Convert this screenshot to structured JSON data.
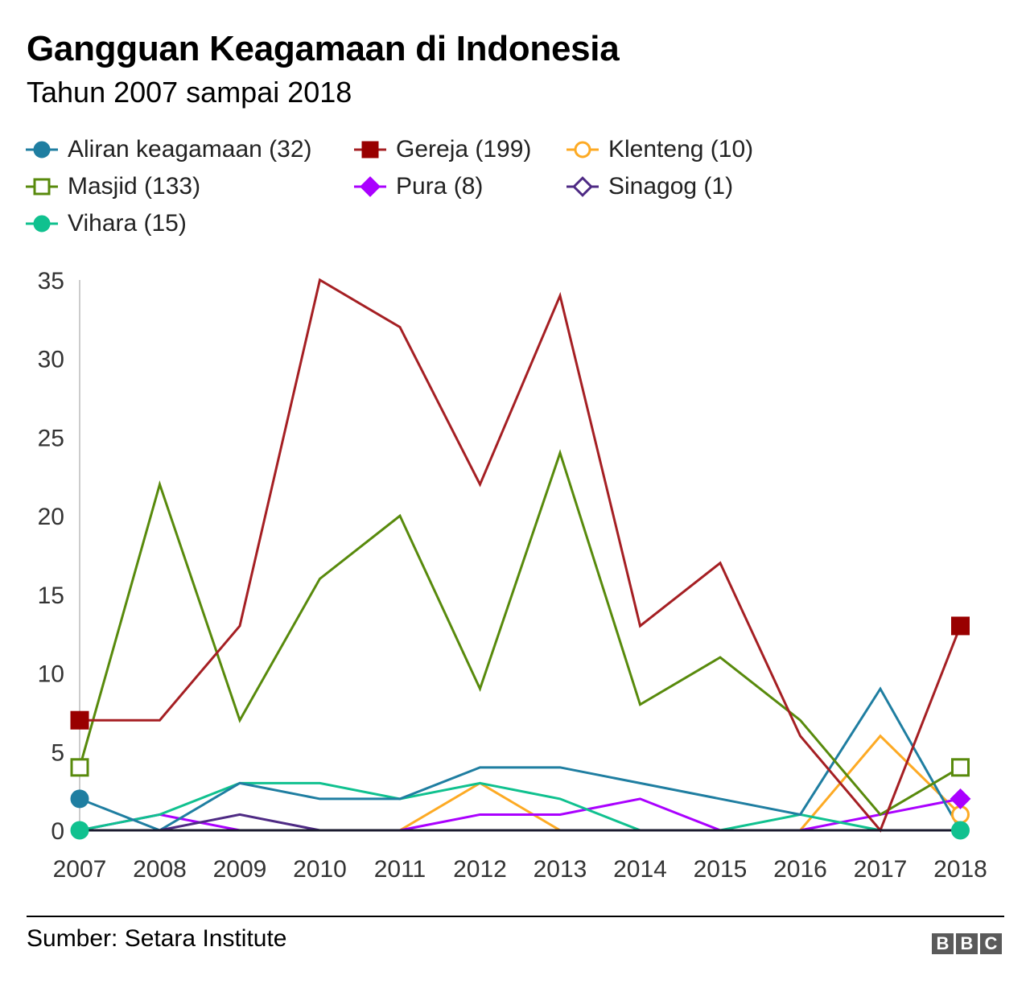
{
  "header": {
    "title": "Gangguan Keagamaan di Indonesia",
    "subtitle": "Tahun 2007 sampai 2018"
  },
  "footer": {
    "source": "Sumber: Setara Institute",
    "logo": [
      "B",
      "B",
      "C"
    ]
  },
  "chart_data": {
    "type": "line",
    "title": "Gangguan Keagamaan di Indonesia",
    "subtitle": "Tahun 2007 sampai 2018",
    "xlabel": "",
    "ylabel": "",
    "ylim": [
      0,
      35
    ],
    "yticks": [
      0,
      5,
      10,
      15,
      20,
      25,
      30,
      35
    ],
    "grid": false,
    "legend_position": "top",
    "x": [
      "2007",
      "2008",
      "2009",
      "2010",
      "2011",
      "2012",
      "2013",
      "2014",
      "2015",
      "2016",
      "2017",
      "2018"
    ],
    "series": [
      {
        "name": "Aliran keagamaan",
        "legend_label": "Aliran keagamaan (32)",
        "total": 32,
        "color": "#1f7ea1",
        "marker": "circle-filled",
        "values": [
          2,
          0,
          3,
          2,
          2,
          4,
          4,
          3,
          2,
          1,
          9,
          0
        ]
      },
      {
        "name": "Gereja",
        "legend_label": "Gereja (199)",
        "total": 199,
        "color": "#a51f23",
        "marker_color": "#990000",
        "marker": "square-filled",
        "values": [
          7,
          7,
          13,
          35,
          32,
          22,
          34,
          13,
          17,
          6,
          0,
          13
        ]
      },
      {
        "name": "Klenteng",
        "legend_label": "Klenteng (10)",
        "total": 10,
        "color": "#fdaa24",
        "marker": "circle-open",
        "values": [
          0,
          0,
          0,
          0,
          0,
          3,
          0,
          0,
          0,
          0,
          6,
          1
        ]
      },
      {
        "name": "Masjid",
        "legend_label": "Masjid (133)",
        "total": 133,
        "color": "#588a0c",
        "marker": "square-open",
        "values": [
          4,
          22,
          7,
          16,
          20,
          9,
          24,
          8,
          11,
          7,
          1,
          4
        ]
      },
      {
        "name": "Pura",
        "legend_label": "Pura (8)",
        "total": 8,
        "color": "#aa00ff",
        "marker": "diamond-filled",
        "values": [
          0,
          1,
          0,
          0,
          0,
          1,
          1,
          2,
          0,
          0,
          1,
          2
        ]
      },
      {
        "name": "Sinagog",
        "legend_label": "Sinagog (1)",
        "total": 1,
        "color": "#4e2a84",
        "marker": "diamond-open",
        "values": [
          0,
          0,
          1,
          0,
          0,
          0,
          0,
          0,
          0,
          0,
          0,
          0
        ]
      },
      {
        "name": "Vihara",
        "legend_label": "Vihara (15)",
        "total": 15,
        "color": "#10c18f",
        "marker": "circle-filled",
        "values": [
          0,
          1,
          3,
          3,
          2,
          3,
          2,
          0,
          0,
          1,
          0,
          0
        ]
      }
    ]
  }
}
